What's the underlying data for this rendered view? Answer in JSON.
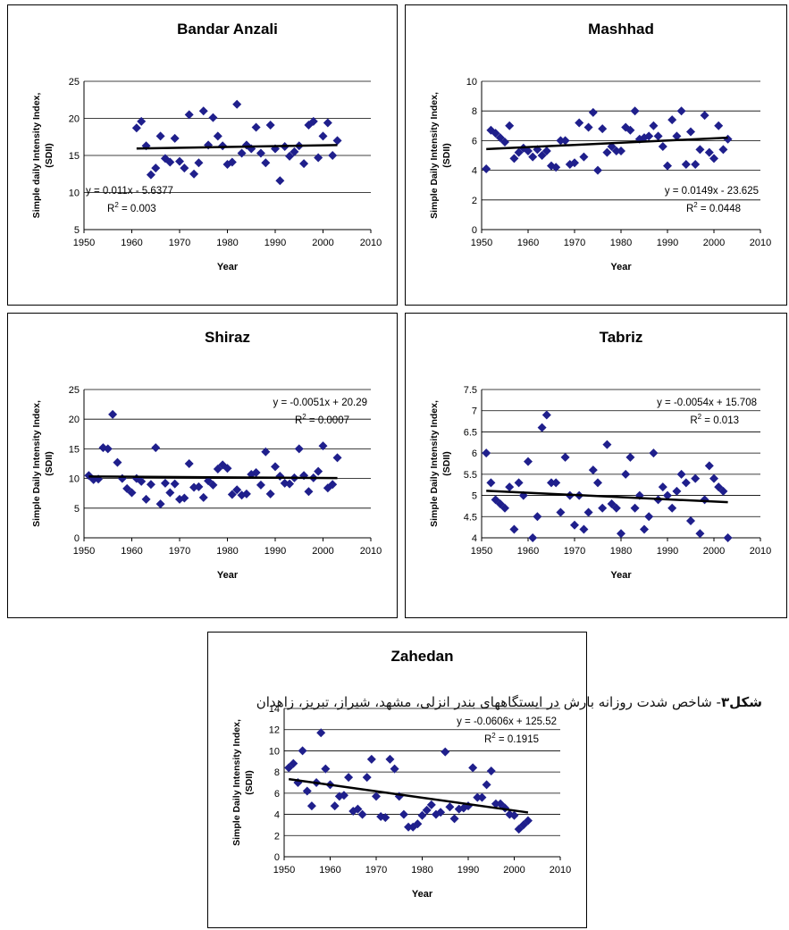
{
  "caption": {
    "label": "شکل۳",
    "text": "- شاخص شدت روزانه بارش در ایستگاههای بندر انزلی، مشهد، شیراز، تبریز، زاهدان"
  },
  "colors": {
    "marker": "#1f1f8c",
    "trend": "#000000",
    "grid": "#000000",
    "frame": "#000000"
  },
  "chart_data": [
    {
      "type": "scatter",
      "title": "Bandar Anzali",
      "xlabel": "Year",
      "ylabel_line1": "Simple daily Intensity Index,",
      "ylabel_line2": "(SDII)",
      "xlim": [
        1950,
        2010
      ],
      "xticks": [
        1950,
        1960,
        1970,
        1980,
        1990,
        2000,
        2010
      ],
      "ylim": [
        5,
        25
      ],
      "yticks": [
        5,
        10,
        15,
        20,
        25
      ],
      "equation": "y = 0.011x - 5.6377",
      "r2": "0.003",
      "eq_pos": "bottom-left",
      "trend": [
        [
          1961,
          15.94
        ],
        [
          2003,
          16.4
        ]
      ],
      "x": [
        1961,
        1962,
        1963,
        1964,
        1965,
        1966,
        1967,
        1968,
        1969,
        1970,
        1971,
        1972,
        1973,
        1974,
        1975,
        1976,
        1977,
        1978,
        1979,
        1980,
        1981,
        1982,
        1983,
        1984,
        1985,
        1986,
        1987,
        1988,
        1989,
        1990,
        1991,
        1992,
        1993,
        1994,
        1995,
        1996,
        1997,
        1998,
        1999,
        2000,
        2001,
        2002,
        2003
      ],
      "y": [
        18.7,
        19.6,
        16.3,
        12.4,
        13.3,
        17.6,
        14.6,
        14.1,
        17.3,
        14.2,
        13.3,
        20.5,
        12.5,
        14.0,
        21.0,
        16.4,
        20.1,
        17.6,
        16.3,
        13.8,
        14.1,
        21.9,
        15.3,
        16.4,
        15.9,
        18.8,
        15.3,
        14.0,
        19.1,
        15.9,
        11.6,
        16.2,
        14.9,
        15.5,
        16.3,
        13.9,
        19.1,
        19.6,
        14.7,
        17.6,
        19.4,
        15.0,
        17.0
      ]
    },
    {
      "type": "scatter",
      "title": "Mashhad",
      "xlabel": "Year",
      "ylabel_line1": "Simple Daily Intensity Index,",
      "ylabel_line2": "(SDII)",
      "xlim": [
        1950,
        2010
      ],
      "xticks": [
        1950,
        1960,
        1970,
        1980,
        1990,
        2000,
        2010
      ],
      "ylim": [
        0,
        10
      ],
      "yticks": [
        0,
        2,
        4,
        6,
        8,
        10
      ],
      "equation": "y = 0.0149x - 23.625",
      "r2": "0.0448",
      "eq_pos": "bottom-right",
      "trend": [
        [
          1951,
          5.43
        ],
        [
          2003,
          6.2
        ]
      ],
      "x": [
        1951,
        1952,
        1953,
        1954,
        1955,
        1956,
        1957,
        1958,
        1959,
        1960,
        1961,
        1962,
        1963,
        1964,
        1965,
        1966,
        1967,
        1968,
        1969,
        1970,
        1971,
        1972,
        1973,
        1974,
        1975,
        1976,
        1977,
        1978,
        1979,
        1980,
        1981,
        1982,
        1983,
        1984,
        1985,
        1986,
        1987,
        1988,
        1989,
        1990,
        1991,
        1992,
        1993,
        1994,
        1995,
        1996,
        1997,
        1998,
        1999,
        2000,
        2001,
        2002,
        2003
      ],
      "y": [
        4.1,
        6.7,
        6.5,
        6.2,
        5.9,
        7.0,
        4.8,
        5.2,
        5.5,
        5.3,
        4.9,
        5.4,
        5.0,
        5.3,
        4.3,
        4.2,
        6.0,
        6.0,
        4.4,
        4.5,
        7.2,
        4.9,
        6.9,
        7.9,
        4.0,
        6.8,
        5.2,
        5.6,
        5.3,
        5.3,
        6.9,
        6.7,
        8.0,
        6.1,
        6.2,
        6.3,
        7.0,
        6.3,
        5.6,
        4.3,
        7.4,
        6.3,
        8.0,
        4.4,
        6.6,
        4.4,
        5.4,
        7.7,
        5.2,
        4.8,
        7.0,
        5.4,
        6.1
      ]
    },
    {
      "type": "scatter",
      "title": "Shiraz",
      "xlabel": "Year",
      "ylabel_line1": "Simple Daily Intensity Index,",
      "ylabel_line2": "(SDII)",
      "xlim": [
        1950,
        2010
      ],
      "xticks": [
        1950,
        1960,
        1970,
        1980,
        1990,
        2000,
        2010
      ],
      "ylim": [
        0,
        25
      ],
      "yticks": [
        0,
        5,
        10,
        15,
        20,
        25
      ],
      "equation": "y = -0.0051x + 20.29",
      "r2": "0.0007",
      "eq_pos": "top-right",
      "trend": [
        [
          1951,
          10.34
        ],
        [
          2003,
          10.07
        ]
      ],
      "x": [
        1951,
        1952,
        1953,
        1954,
        1955,
        1956,
        1957,
        1958,
        1959,
        1960,
        1961,
        1962,
        1963,
        1964,
        1965,
        1966,
        1967,
        1968,
        1969,
        1970,
        1971,
        1972,
        1973,
        1974,
        1975,
        1976,
        1977,
        1978,
        1979,
        1980,
        1981,
        1982,
        1983,
        1984,
        1985,
        1986,
        1987,
        1988,
        1989,
        1990,
        1991,
        1992,
        1993,
        1994,
        1995,
        1996,
        1997,
        1998,
        1999,
        2000,
        2001,
        2002,
        2003
      ],
      "y": [
        10.5,
        9.8,
        9.9,
        15.2,
        15.0,
        20.8,
        12.7,
        10.0,
        8.3,
        7.6,
        10.0,
        9.5,
        6.5,
        9.0,
        15.2,
        5.7,
        9.2,
        7.6,
        9.1,
        6.5,
        6.7,
        12.5,
        8.5,
        8.6,
        6.8,
        9.6,
        8.9,
        11.6,
        12.3,
        11.7,
        7.3,
        8.1,
        7.2,
        7.4,
        10.7,
        11.0,
        8.9,
        14.5,
        7.4,
        12.0,
        10.4,
        9.2,
        9.1,
        10.1,
        15.0,
        10.5,
        7.8,
        10.1,
        11.2,
        15.5,
        8.4,
        9.0,
        13.5
      ]
    },
    {
      "type": "scatter",
      "title": "Tabriz",
      "xlabel": "Year",
      "ylabel_line1": "Simple Daily Intensity Index,",
      "ylabel_line2": "(SDII)",
      "xlim": [
        1950,
        2010
      ],
      "xticks": [
        1950,
        1960,
        1970,
        1980,
        1990,
        2000,
        2010
      ],
      "ylim": [
        4,
        7.5
      ],
      "yticks": [
        4,
        4.5,
        5,
        5.5,
        6,
        6.5,
        7,
        7.5
      ],
      "equation": "y = -0.0054x + 15.708",
      "r2": "0.013",
      "eq_pos": "top-right",
      "trend": [
        [
          1951,
          5.11
        ],
        [
          2003,
          4.84
        ]
      ],
      "x": [
        1951,
        1952,
        1953,
        1954,
        1955,
        1956,
        1957,
        1958,
        1959,
        1960,
        1961,
        1962,
        1963,
        1964,
        1965,
        1966,
        1967,
        1968,
        1969,
        1970,
        1971,
        1972,
        1973,
        1974,
        1975,
        1976,
        1977,
        1978,
        1979,
        1980,
        1981,
        1982,
        1983,
        1984,
        1985,
        1986,
        1987,
        1988,
        1989,
        1990,
        1991,
        1992,
        1993,
        1994,
        1995,
        1996,
        1997,
        1998,
        1999,
        2000,
        2001,
        2002,
        2003
      ],
      "y": [
        6.0,
        5.3,
        4.9,
        4.8,
        4.7,
        5.2,
        4.2,
        5.3,
        5.0,
        5.8,
        4.0,
        4.5,
        6.6,
        6.9,
        5.3,
        5.3,
        4.6,
        5.9,
        5.0,
        4.3,
        5.0,
        4.2,
        4.6,
        5.6,
        5.3,
        4.7,
        6.2,
        4.8,
        4.7,
        4.1,
        5.5,
        5.9,
        4.7,
        5.0,
        4.2,
        4.5,
        6.0,
        4.9,
        5.2,
        5.0,
        4.7,
        5.1,
        5.5,
        5.3,
        4.4,
        5.4,
        4.1,
        4.9,
        5.7,
        5.4,
        5.2,
        5.1,
        4.0
      ]
    },
    {
      "type": "scatter",
      "title": "Zahedan",
      "xlabel": "Year",
      "ylabel_line1": "Simple Daily Intensity Index,",
      "ylabel_line2": "(SDII)",
      "xlim": [
        1950,
        2010
      ],
      "xticks": [
        1950,
        1960,
        1970,
        1980,
        1990,
        2000,
        2010
      ],
      "ylim": [
        0,
        14
      ],
      "yticks": [
        0,
        2,
        4,
        6,
        8,
        10,
        12,
        14
      ],
      "equation": "y = -0.0606x + 125.52",
      "r2": "0.1915",
      "eq_pos": "top-right",
      "trend": [
        [
          1951,
          7.33
        ],
        [
          2003,
          4.18
        ]
      ],
      "x": [
        1951,
        1952,
        1953,
        1954,
        1955,
        1956,
        1957,
        1958,
        1959,
        1960,
        1961,
        1962,
        1963,
        1964,
        1965,
        1966,
        1967,
        1968,
        1969,
        1970,
        1971,
        1972,
        1973,
        1974,
        1975,
        1976,
        1977,
        1978,
        1979,
        1980,
        1981,
        1982,
        1983,
        1984,
        1985,
        1986,
        1987,
        1988,
        1989,
        1990,
        1991,
        1992,
        1993,
        1994,
        1995,
        1996,
        1997,
        1998,
        1999,
        2000,
        2001,
        2002,
        2003
      ],
      "y": [
        8.4,
        8.8,
        7.0,
        10.0,
        6.2,
        4.8,
        7.0,
        11.7,
        8.3,
        6.8,
        4.8,
        5.7,
        5.8,
        7.5,
        4.3,
        4.5,
        4.0,
        7.5,
        9.2,
        5.7,
        3.8,
        3.7,
        9.2,
        8.3,
        5.7,
        4.0,
        2.8,
        2.8,
        3.1,
        3.9,
        4.4,
        4.9,
        4.0,
        4.2,
        9.9,
        4.7,
        3.6,
        4.5,
        4.6,
        4.8,
        8.4,
        5.6,
        5.6,
        6.8,
        8.1,
        5.0,
        5.0,
        4.6,
        4.0,
        3.9,
        2.6,
        3.0,
        3.4
      ]
    }
  ]
}
